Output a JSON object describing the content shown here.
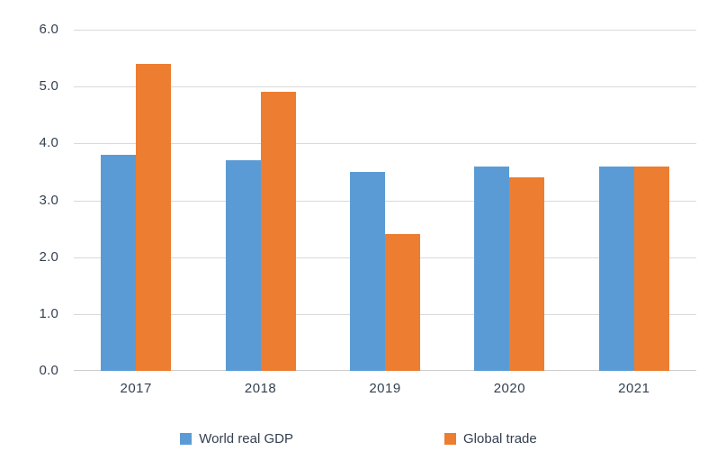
{
  "chart_data": {
    "type": "bar",
    "title": "",
    "categories": [
      "2017",
      "2018",
      "2019",
      "2020",
      "2021"
    ],
    "series": [
      {
        "name": "World real GDP",
        "color": "#5B9BD5",
        "values": [
          3.8,
          3.7,
          3.5,
          3.6,
          3.6
        ]
      },
      {
        "name": "Global trade",
        "color": "#ED7D31",
        "values": [
          5.4,
          4.9,
          2.4,
          3.4,
          3.6
        ]
      }
    ],
    "xlabel": "",
    "ylabel": "",
    "ylim": [
      0,
      6
    ],
    "y_tick_step": 1,
    "y_ticks": [
      "0.0",
      "1.0",
      "2.0",
      "3.0",
      "4.0",
      "5.0",
      "6.0"
    ],
    "grid": true,
    "legend_position": "bottom",
    "colors": {
      "text": "#333F50",
      "gridline": "#D9D9D9",
      "axis_line": "#CDCDCD",
      "background": "#FFFFFF"
    }
  }
}
